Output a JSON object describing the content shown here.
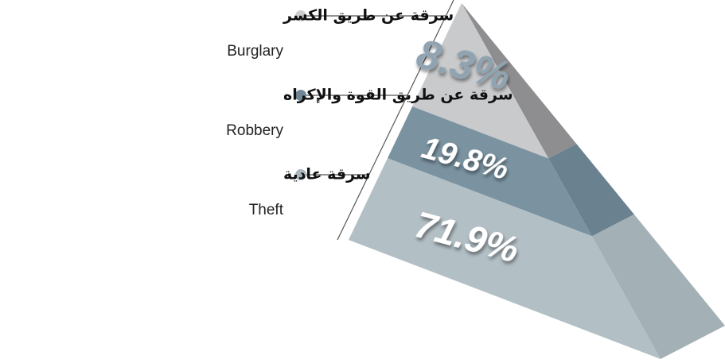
{
  "chart_data": {
    "type": "pyramid",
    "categories": [
      "Burglary",
      "Robbery",
      "Theft"
    ],
    "categories_ar": [
      "سرقة عن طريق الكسر",
      "سرقة عن طريق القوة والإكراه",
      "سرقة عادية"
    ],
    "values": [
      8.3,
      19.8,
      71.9
    ],
    "value_labels": [
      "8.3%",
      "19.8%",
      "71.9%"
    ],
    "colors": [
      "#c9cacc",
      "#7b93a1",
      "#b2bfc5"
    ],
    "side_colors": [
      "#8e8e90",
      "#6a8290",
      "#a3b0b6"
    ],
    "dot_colors": [
      "#cfcfcf",
      "#6f8797",
      "#a9b7bd"
    ]
  }
}
